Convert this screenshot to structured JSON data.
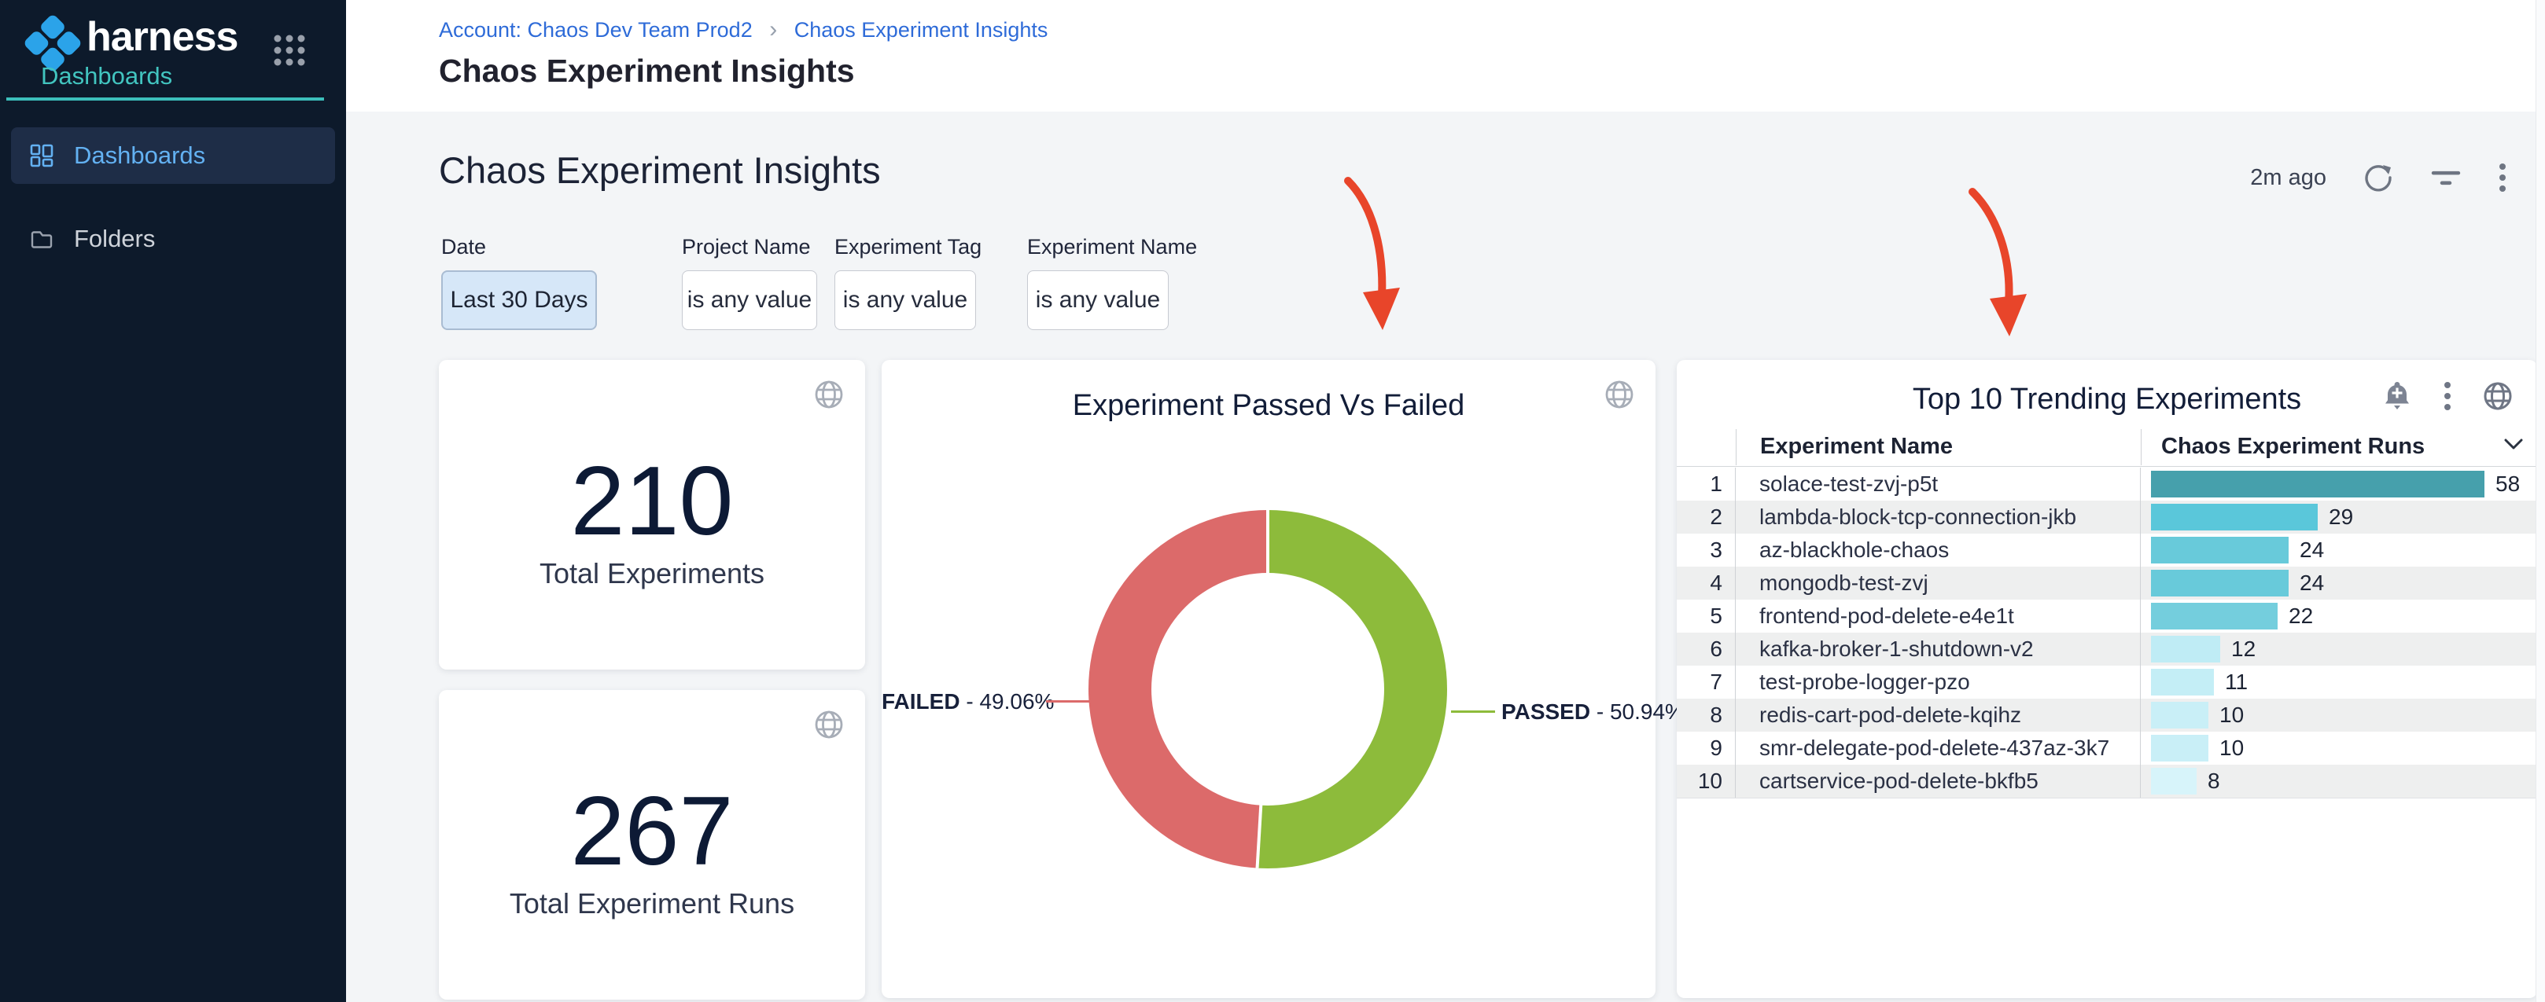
{
  "sidebar": {
    "brand": "harness",
    "module": "Dashboards",
    "items": [
      {
        "label": "Dashboards",
        "active": true
      },
      {
        "label": "Folders",
        "active": false
      }
    ]
  },
  "header": {
    "breadcrumb": {
      "account": "Account: Chaos Dev Team Prod2",
      "separator": "›",
      "current": "Chaos Experiment Insights"
    },
    "title": "Chaos Experiment Insights"
  },
  "main": {
    "heading": "Chaos Experiment Insights",
    "last_refreshed": "2m ago",
    "header_icons": [
      "refresh-icon",
      "filter-icon",
      "kebab-menu-icon"
    ]
  },
  "filters": [
    {
      "label": "Date",
      "value": "Last 30 Days",
      "highlighted": true
    },
    {
      "label": "Project Name",
      "value": "is any value",
      "highlighted": false
    },
    {
      "label": "Experiment Tag",
      "value": "is any value",
      "highlighted": false
    },
    {
      "label": "Experiment Name",
      "value": "is any value",
      "highlighted": false
    }
  ],
  "metric_cards": [
    {
      "value": "210",
      "label": "Total Experiments"
    },
    {
      "value": "267",
      "label": "Total Experiment Runs"
    }
  ],
  "chart_data": [
    {
      "type": "pie",
      "donut": true,
      "title": "Experiment Passed Vs Failed",
      "slices": [
        {
          "label": "PASSED",
          "value": 50.94,
          "pct_text": " - 50.94%",
          "color": "#8dbb3b"
        },
        {
          "label": "FAILED",
          "value": 49.06,
          "pct_text": " - 49.06%",
          "color": "#dc6a6a"
        }
      ],
      "legend_position": "data-labels"
    },
    {
      "type": "bar",
      "title": "Top 10 Trending Experiments",
      "columns": [
        "Experiment Name",
        "Chaos Experiment Runs"
      ],
      "xlim": [
        0,
        58
      ],
      "rows": [
        {
          "rank": "1",
          "name": "solace-test-zvj-p5t",
          "value": 58,
          "color": "#46a0ac"
        },
        {
          "rank": "2",
          "name": "lambda-block-tcp-connection-jkb",
          "value": 29,
          "color": "#5ac7da"
        },
        {
          "rank": "3",
          "name": "az-blackhole-chaos",
          "value": 24,
          "color": "#68cada"
        },
        {
          "rank": "4",
          "name": "mongodb-test-zvj",
          "value": 24,
          "color": "#68cada"
        },
        {
          "rank": "5",
          "name": "frontend-pod-delete-e4e1t",
          "value": 22,
          "color": "#74cedd"
        },
        {
          "rank": "6",
          "name": "kafka-broker-1-shutdown-v2",
          "value": 12,
          "color": "#bfecf5"
        },
        {
          "rank": "7",
          "name": "test-probe-logger-pzo",
          "value": 11,
          "color": "#c4eef6"
        },
        {
          "rank": "8",
          "name": "redis-cart-pod-delete-kqihz",
          "value": 10,
          "color": "#c9eff7"
        },
        {
          "rank": "9",
          "name": "smr-delegate-pod-delete-437az-3k7",
          "value": 10,
          "color": "#c9eff7"
        },
        {
          "rank": "10",
          "name": "cartservice-pod-delete-bkfb5",
          "value": 8,
          "color": "#d7f4fa"
        }
      ]
    }
  ],
  "annotations": {
    "arrow_color": "#e8452a",
    "arrow_count": 2
  },
  "colors": {
    "sidebar_bg": "#0d1a2b",
    "sidebar_active_bg": "#1e2d47",
    "sidebar_active_text": "#63b1f2",
    "brand_teal": "#3cbfbb",
    "link_blue": "#2e6bd8",
    "main_bg": "#f3f5f7",
    "passed_green": "#8dbb3b",
    "failed_red": "#dc6a6a",
    "date_filter_bg": "#d6e7f8"
  }
}
